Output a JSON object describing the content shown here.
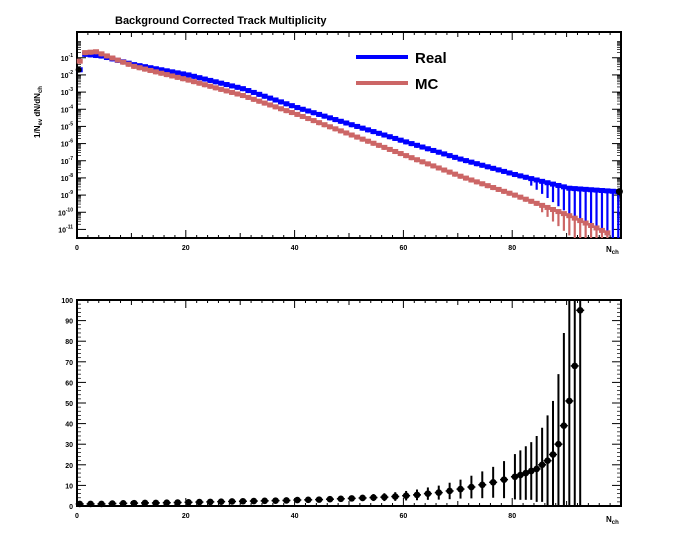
{
  "chart_data": [
    {
      "id": "top",
      "type": "scatter",
      "title": "Background Corrected Track Multiplicity",
      "xlabel": "N_ch",
      "ylabel": "1/N_ev dN/dN_ch",
      "xlim": [
        0,
        100
      ],
      "ylim_log10": [
        -11.5,
        0.5
      ],
      "yscale": "log",
      "xticks": [
        0,
        20,
        40,
        60,
        80
      ],
      "yticks_exp": [
        -1,
        -2,
        -3,
        -4,
        -5,
        -6,
        -7,
        -8,
        -9,
        -10,
        -11
      ],
      "legend": {
        "position": "top-center"
      },
      "series": [
        {
          "name": "Real",
          "color": "#0000ff",
          "log10_anchors": [
            [
              0,
              -1.7
            ],
            [
              1,
              -0.8
            ],
            [
              4,
              -0.9
            ],
            [
              10,
              -1.4
            ],
            [
              20,
              -2.0
            ],
            [
              30,
              -2.8
            ],
            [
              40,
              -3.9
            ],
            [
              50,
              -4.9
            ],
            [
              60,
              -5.9
            ],
            [
              70,
              -6.9
            ],
            [
              80,
              -7.8
            ],
            [
              90,
              -8.6
            ],
            [
              99,
              -8.8
            ]
          ]
        },
        {
          "name": "MC",
          "color": "#cc6666",
          "log10_anchors": [
            [
              0,
              -1.2
            ],
            [
              1,
              -0.7
            ],
            [
              3,
              -0.65
            ],
            [
              10,
              -1.5
            ],
            [
              20,
              -2.3
            ],
            [
              30,
              -3.2
            ],
            [
              40,
              -4.3
            ],
            [
              50,
              -5.5
            ],
            [
              60,
              -6.7
            ],
            [
              70,
              -7.9
            ],
            [
              80,
              -9.0
            ],
            [
              90,
              -10.2
            ],
            [
              97,
              -11.2
            ]
          ]
        }
      ]
    },
    {
      "id": "bottom",
      "type": "scatter",
      "xlabel": "N_ch",
      "xlim": [
        0,
        100
      ],
      "ylim": [
        0,
        100
      ],
      "xticks": [
        0,
        20,
        40,
        60,
        80
      ],
      "yticks": [
        0,
        10,
        20,
        30,
        40,
        50,
        60,
        70,
        80,
        90,
        100
      ],
      "x": [
        0,
        2,
        4,
        6,
        8,
        10,
        12,
        14,
        16,
        18,
        20,
        22,
        24,
        26,
        28,
        30,
        32,
        34,
        36,
        38,
        40,
        42,
        44,
        46,
        48,
        50,
        52,
        54,
        56,
        58,
        60,
        62,
        64,
        66,
        68,
        70,
        72,
        74,
        76,
        78,
        80,
        81,
        82,
        83,
        84,
        85,
        86,
        87,
        88,
        89,
        90,
        91,
        92
      ],
      "y": [
        1,
        1,
        1,
        1.2,
        1.3,
        1.4,
        1.5,
        1.5,
        1.6,
        1.7,
        1.8,
        1.9,
        2,
        2.1,
        2.2,
        2.3,
        2.4,
        2.5,
        2.6,
        2.7,
        2.9,
        3,
        3.1,
        3.3,
        3.5,
        3.7,
        3.9,
        4.1,
        4.3,
        4.6,
        5,
        5.4,
        6,
        6.5,
        7.3,
        8.2,
        9.2,
        10.3,
        11.5,
        12.8,
        14.2,
        15,
        16,
        17,
        18,
        20,
        22,
        25,
        30,
        39,
        51,
        68,
        95
      ],
      "yerr": [
        1,
        1,
        1,
        1,
        1,
        1,
        1,
        1,
        1,
        1,
        1,
        1,
        1,
        1,
        1,
        1,
        1,
        1,
        1,
        1,
        1,
        1,
        1,
        1.2,
        1.3,
        1.4,
        1.5,
        1.7,
        1.9,
        2.1,
        2.3,
        2.6,
        3,
        3.4,
        4,
        4.6,
        5.5,
        6.5,
        7.5,
        9,
        11,
        12,
        13,
        14,
        16,
        18,
        22,
        26,
        34,
        45,
        60,
        80,
        110
      ]
    }
  ]
}
